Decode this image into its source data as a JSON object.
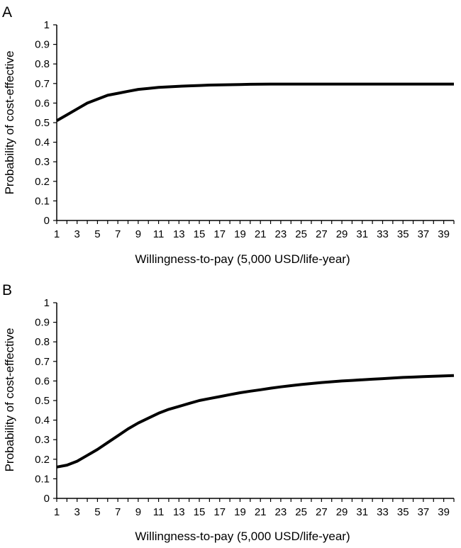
{
  "chart_data": [
    {
      "panel_label": "A",
      "type": "line",
      "xlabel": "Willingness-to-pay (5,000 USD/life-year)",
      "ylabel": "Probability of cost-effective",
      "ylim": [
        0,
        1
      ],
      "xlim": [
        1,
        40
      ],
      "yticks": [
        "0",
        "0.1",
        "0.2",
        "0.3",
        "0.4",
        "0.5",
        "0.6",
        "0.7",
        "0.8",
        "0.9",
        "1"
      ],
      "xticks": [
        "1",
        "3",
        "5",
        "7",
        "9",
        "11",
        "13",
        "15",
        "17",
        "19",
        "21",
        "23",
        "25",
        "27",
        "29",
        "31",
        "33",
        "35",
        "37",
        "39"
      ],
      "grid": false,
      "series": [
        {
          "color": "#000000",
          "x": [
            1,
            2,
            3,
            4,
            5,
            6,
            7,
            8,
            9,
            10,
            11,
            12,
            13,
            14,
            15,
            16,
            17,
            18,
            19,
            20,
            22,
            25,
            30,
            35,
            40
          ],
          "values": [
            0.51,
            0.54,
            0.57,
            0.6,
            0.62,
            0.64,
            0.65,
            0.66,
            0.67,
            0.675,
            0.68,
            0.683,
            0.686,
            0.688,
            0.69,
            0.692,
            0.693,
            0.694,
            0.695,
            0.696,
            0.697,
            0.697,
            0.697,
            0.697,
            0.697
          ]
        }
      ]
    },
    {
      "panel_label": "B",
      "type": "line",
      "xlabel": "Willingness-to-pay (5,000 USD/life-year)",
      "ylabel": "Probability of cost-effective",
      "ylim": [
        0,
        1
      ],
      "xlim": [
        1,
        40
      ],
      "yticks": [
        "0",
        "0.1",
        "0.2",
        "0.3",
        "0.4",
        "0.5",
        "0.6",
        "0.7",
        "0.8",
        "0.9",
        "1"
      ],
      "xticks": [
        "1",
        "3",
        "5",
        "7",
        "9",
        "11",
        "13",
        "15",
        "17",
        "19",
        "21",
        "23",
        "25",
        "27",
        "29",
        "31",
        "33",
        "35",
        "37",
        "39"
      ],
      "grid": false,
      "series": [
        {
          "color": "#000000",
          "x": [
            1,
            2,
            3,
            4,
            5,
            6,
            7,
            8,
            9,
            10,
            11,
            12,
            13,
            14,
            15,
            16,
            17,
            18,
            19,
            20,
            21,
            22,
            23,
            24,
            25,
            26,
            27,
            28,
            29,
            30,
            31,
            32,
            33,
            34,
            35,
            36,
            37,
            38,
            39,
            40
          ],
          "values": [
            0.16,
            0.17,
            0.19,
            0.22,
            0.25,
            0.285,
            0.32,
            0.355,
            0.385,
            0.41,
            0.435,
            0.455,
            0.47,
            0.485,
            0.5,
            0.51,
            0.52,
            0.53,
            0.54,
            0.548,
            0.555,
            0.563,
            0.57,
            0.576,
            0.582,
            0.587,
            0.592,
            0.596,
            0.6,
            0.603,
            0.606,
            0.609,
            0.612,
            0.615,
            0.618,
            0.62,
            0.622,
            0.624,
            0.626,
            0.628
          ]
        }
      ]
    }
  ]
}
